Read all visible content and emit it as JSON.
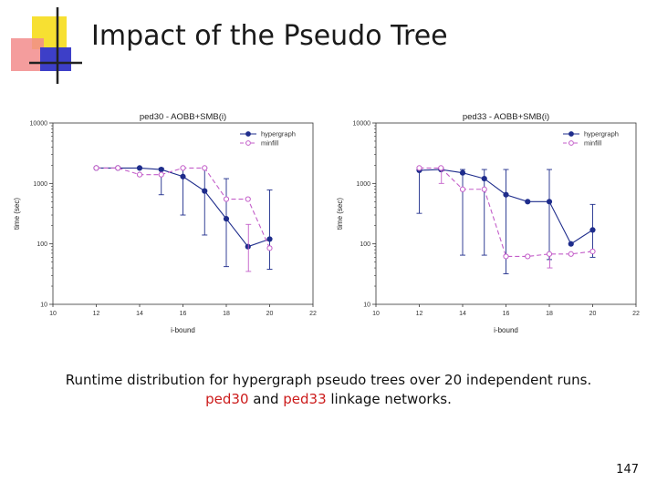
{
  "slide": {
    "title": "Impact of the Pseudo Tree",
    "caption_line1": "Runtime distribution for hypergraph pseudo trees over 20 independent runs.",
    "caption_line2": {
      "ped30": "ped30",
      "and": " and ",
      "ped33": "ped33",
      "rest": " linkage networks."
    },
    "page_number": "147",
    "colors": {
      "hypergraph": "#1f2d8c",
      "minfill": "#c35ec9",
      "caption_highlight": "#cc1b1b"
    }
  },
  "chart_data": [
    {
      "type": "line",
      "title": "ped30 - AOBB+SMB(i)",
      "xlabel": "i-bound",
      "ylabel": "time (sec)",
      "xlim": [
        10,
        22
      ],
      "ylim": [
        10,
        10000
      ],
      "yscale": "log",
      "xticks": [
        "10",
        "12",
        "14",
        "16",
        "18",
        "20",
        "22"
      ],
      "yticks": [
        "10",
        "100",
        "1000",
        "10000"
      ],
      "legend_position": "top-right",
      "grid": false,
      "series": [
        {
          "name": "hypergraph",
          "style": "solid-filled-markers",
          "x": [
            12,
            13,
            14,
            15,
            16,
            17,
            18,
            19,
            20
          ],
          "y": [
            1800,
            1800,
            1800,
            1700,
            1300,
            750,
            260,
            90,
            120
          ],
          "err_low": [
            null,
            null,
            null,
            650,
            300,
            140,
            42,
            null,
            38
          ],
          "err_high": [
            null,
            null,
            null,
            1800,
            1800,
            1800,
            1200,
            null,
            780
          ]
        },
        {
          "name": "minfill",
          "style": "dashed-open-markers",
          "x": [
            12,
            13,
            14,
            15,
            16,
            17,
            18,
            19,
            20
          ],
          "y": [
            1800,
            1800,
            1400,
            1400,
            1800,
            1800,
            550,
            550,
            85
          ],
          "err_low": [
            null,
            null,
            null,
            null,
            null,
            null,
            null,
            35,
            null
          ],
          "err_high": [
            null,
            null,
            null,
            null,
            null,
            null,
            null,
            210,
            null
          ]
        }
      ]
    },
    {
      "type": "line",
      "title": "ped33 - AOBB+SMB(i)",
      "xlabel": "i-bound",
      "ylabel": "time (sec)",
      "xlim": [
        10,
        22
      ],
      "ylim": [
        10,
        10000
      ],
      "yscale": "log",
      "xticks": [
        "10",
        "12",
        "14",
        "16",
        "18",
        "20",
        "22"
      ],
      "yticks": [
        "10",
        "100",
        "1000",
        "10000"
      ],
      "legend_position": "top-right",
      "grid": false,
      "series": [
        {
          "name": "hypergraph",
          "style": "solid-filled-markers",
          "x": [
            12,
            13,
            14,
            15,
            16,
            17,
            18,
            19,
            20
          ],
          "y": [
            1650,
            1700,
            1500,
            1200,
            650,
            500,
            500,
            100,
            170
          ],
          "err_low": [
            320,
            null,
            65,
            65,
            32,
            null,
            55,
            null,
            60
          ],
          "err_high": [
            1800,
            null,
            1700,
            1700,
            1700,
            null,
            1700,
            270,
            450
          ]
        },
        {
          "name": "minfill",
          "style": "dashed-open-markers",
          "x": [
            12,
            13,
            14,
            15,
            16,
            17,
            18,
            19,
            20
          ],
          "y": [
            1800,
            1800,
            800,
            800,
            62,
            62,
            68,
            68,
            75
          ],
          "err_low": [
            null,
            1000,
            null,
            null,
            null,
            null,
            40,
            null,
            null
          ],
          "err_high": [
            null,
            1800,
            null,
            null,
            null,
            null,
            68,
            null,
            null
          ]
        }
      ]
    }
  ]
}
